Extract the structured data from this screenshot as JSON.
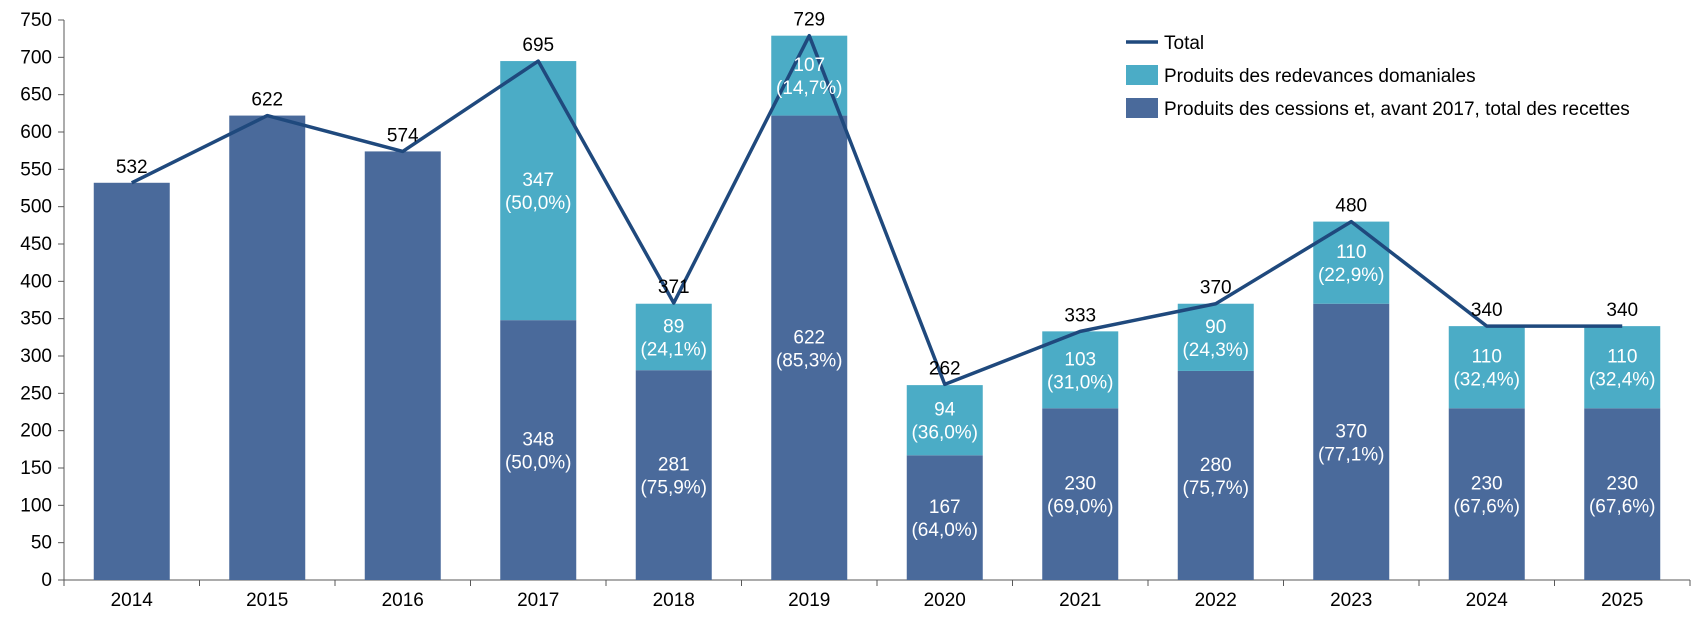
{
  "chart_data": {
    "type": "bar",
    "stacked": true,
    "categories": [
      "2014",
      "2015",
      "2016",
      "2017",
      "2018",
      "2019",
      "2020",
      "2021",
      "2022",
      "2023",
      "2024",
      "2025"
    ],
    "series": [
      {
        "name": "Produits des cessions et, avant 2017, total des recettes",
        "color": "#4a6a9b",
        "values": [
          532,
          622,
          574,
          348,
          281,
          622,
          167,
          230,
          280,
          370,
          230,
          230
        ],
        "labels": [
          "",
          "",
          "",
          "348\n(50,0%)",
          "281\n(75,9%)",
          "622\n(85,3%)",
          "167\n(64,0%)",
          "230\n(69,0%)",
          "280\n(75,7%)",
          "370\n(77,1%)",
          "230\n(67,6%)",
          "230\n(67,6%)"
        ]
      },
      {
        "name": "Produits des redevances domaniales",
        "color": "#4bacc6",
        "values": [
          0,
          0,
          0,
          347,
          89,
          107,
          94,
          103,
          90,
          110,
          110,
          110
        ],
        "labels": [
          "",
          "",
          "",
          "347\n(50,0%)",
          "89\n(24,1%)",
          "107\n(14,7%)",
          "94\n(36,0%)",
          "103\n(31,0%)",
          "90\n(24,3%)",
          "110\n(22,9%)",
          "110\n(32,4%)",
          "110\n(32,4%)"
        ]
      }
    ],
    "line": {
      "name": "Total",
      "color": "#1f497d",
      "values": [
        532,
        622,
        574,
        695,
        371,
        729,
        262,
        333,
        370,
        480,
        340,
        340
      ]
    },
    "y_ticks": [
      0,
      50,
      100,
      150,
      200,
      250,
      300,
      350,
      400,
      450,
      500,
      550,
      600,
      650,
      700,
      750
    ],
    "ylim": [
      0,
      750
    ],
    "grid": false,
    "legend_position": "top-right",
    "legend_order": [
      "line",
      1,
      0
    ]
  }
}
